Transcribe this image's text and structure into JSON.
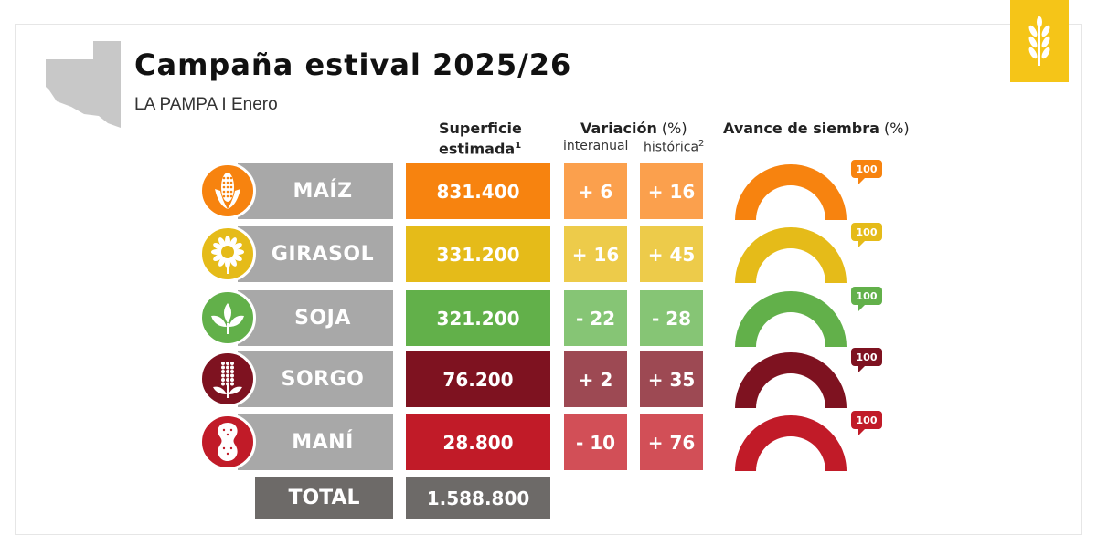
{
  "header": {
    "title": "Campaña estival 2025/26",
    "subtitle": "LA PAMPA I Enero"
  },
  "columns": {
    "superficie_line1": "Superficie",
    "superficie_line2": "estimada",
    "superficie_sup": "1",
    "variacion_bold": "Variación",
    "variacion_unit": "(%)",
    "interanual": "interanual",
    "historica": "histórica",
    "historica_sup": "2",
    "avance_bold": "Avance de siembra",
    "avance_unit": "(%)"
  },
  "colors": {
    "brand": "#f5c518",
    "label_gray": "#a8a8a8",
    "total_gray": "#6d6a68"
  },
  "rows": [
    {
      "name": "MAÍZ",
      "icon": "corn-icon",
      "superficie": "831.400",
      "interanual": "+ 6",
      "historica": "+ 16",
      "avance": "100",
      "avance_pct": 100,
      "color": "#f7830f",
      "var_color": "#fba04d"
    },
    {
      "name": "GIRASOL",
      "icon": "sunflower-icon",
      "superficie": "331.200",
      "interanual": "+ 16",
      "historica": "+ 45",
      "avance": "100",
      "avance_pct": 100,
      "color": "#e5bb19",
      "var_color": "#edcb4a"
    },
    {
      "name": "SOJA",
      "icon": "soy-plant-icon",
      "superficie": "321.200",
      "interanual": "- 22",
      "historica": "- 28",
      "avance": "100",
      "avance_pct": 100,
      "color": "#62b04a",
      "var_color": "#86c575"
    },
    {
      "name": "SORGO",
      "icon": "sorghum-icon",
      "superficie": "76.200",
      "interanual": "+ 2",
      "historica": "+ 35",
      "avance": "100",
      "avance_pct": 100,
      "color": "#7e1220",
      "var_color": "#9d4953"
    },
    {
      "name": "MANÍ",
      "icon": "peanut-icon",
      "superficie": "28.800",
      "interanual": "- 10",
      "historica": "+ 76",
      "avance": "100",
      "avance_pct": 100,
      "color": "#c11b28",
      "var_color": "#d24f57"
    }
  ],
  "total": {
    "label": "TOTAL",
    "superficie": "1.588.800"
  }
}
